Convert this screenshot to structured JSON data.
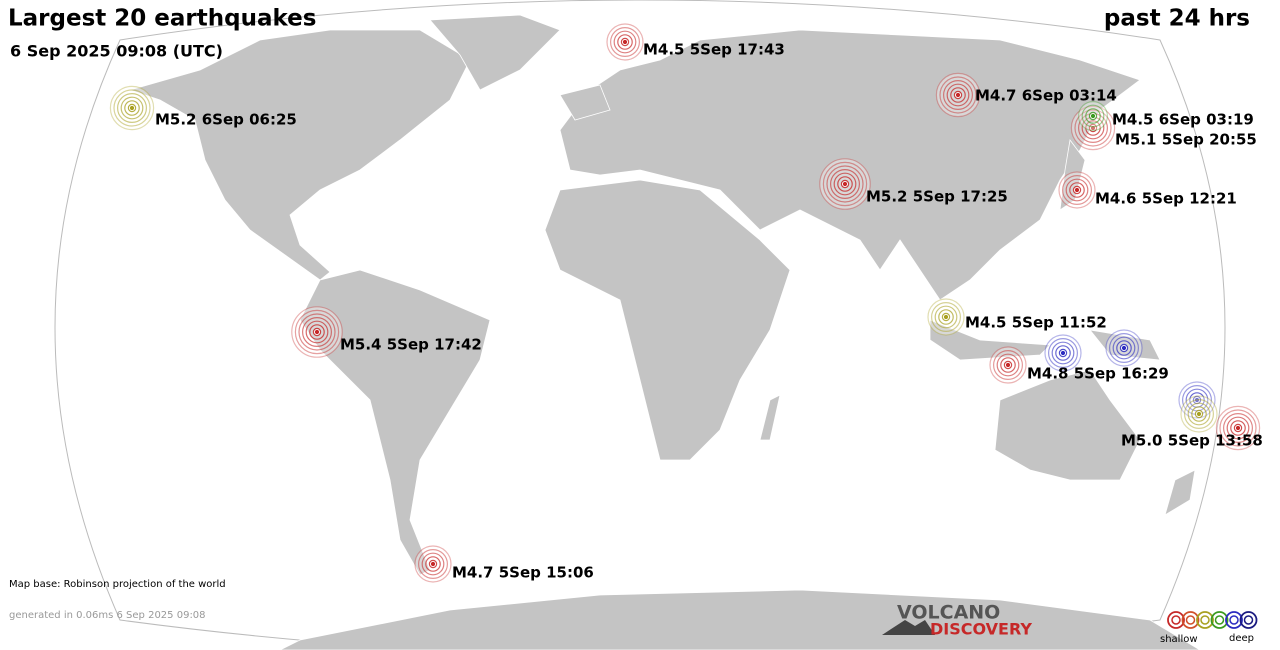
{
  "header": {
    "title": "Largest 20 earthquakes",
    "period": "past 24 hrs",
    "date": "6 Sep 2025 09:08 (UTC)"
  },
  "quakes": [
    {
      "label": "M4.5  5Sep 17:43"
    },
    {
      "label": "M5.2  6Sep 06:25"
    },
    {
      "label": "M4.7  6Sep 03:14"
    },
    {
      "label": "M4.5  6Sep 03:19"
    },
    {
      "label": "M5.1  5Sep 20:55"
    },
    {
      "label": "M5.2  5Sep 17:25"
    },
    {
      "label": "M4.6  5Sep 12:21"
    },
    {
      "label": "M5.4  5Sep 17:42"
    },
    {
      "label": "M4.5  5Sep 11:52"
    },
    {
      "label": "M4.8  5Sep 16:29"
    },
    {
      "label": "M5.0  5Sep 13:58"
    },
    {
      "label": "M4.7  5Sep 15:06"
    }
  ],
  "footer": {
    "map_base": "Map base: Robinson projection of the world",
    "generated": "generated in 0.06ms  6 Sep 2025 09:08"
  },
  "logo": {
    "line1": "VOLCANO",
    "line2": "DISCOVERY"
  },
  "legend": {
    "shallow": "shallow",
    "deep": "deep"
  }
}
